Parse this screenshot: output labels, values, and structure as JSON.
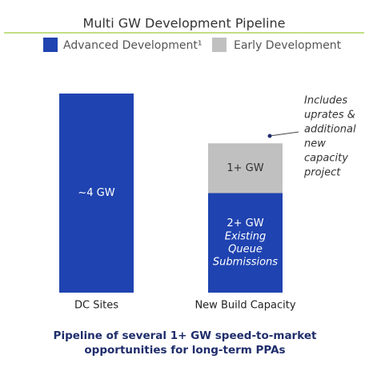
{
  "chart_data": {
    "type": "stacked-bar",
    "title": "Multi GW Development Pipeline",
    "categories": [
      "DC Sites",
      "New Build Capacity"
    ],
    "series": [
      {
        "name": "Advanced Development¹",
        "color": "#1f43b0",
        "values": [
          4,
          2
        ],
        "value_labels": [
          "~4 GW",
          "2+ GW"
        ]
      },
      {
        "name": "Early Development",
        "color": "#c0c0c0",
        "values": [
          null,
          1
        ],
        "value_labels": [
          null,
          "1+ GW"
        ]
      }
    ],
    "bar_annotation": [
      "Existing",
      "Queue",
      "Submissions"
    ],
    "side_annotation": [
      "Includes",
      "uprates &",
      "additional",
      "new",
      "capacity",
      "project"
    ],
    "caption": [
      "Pipeline of several 1+ GW speed-to-market",
      "opportunities for long-term PPAs"
    ]
  }
}
